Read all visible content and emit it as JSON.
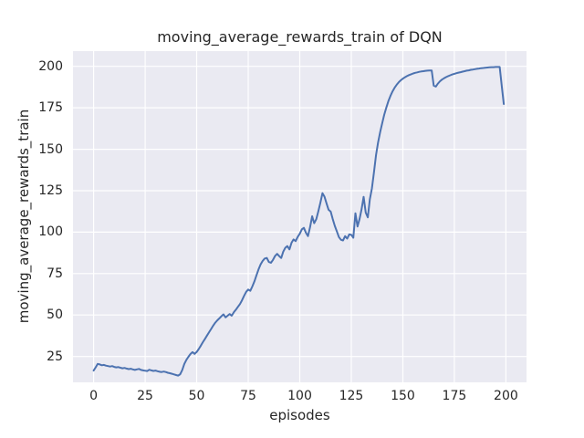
{
  "chart_data": {
    "type": "line",
    "title": "moving_average_rewards_train of DQN",
    "xlabel": "episodes",
    "ylabel": "moving_average_rewards_train",
    "xlim": [
      -10,
      210
    ],
    "ylim": [
      9.4,
      209.2
    ],
    "xticks": [
      0,
      25,
      50,
      75,
      100,
      125,
      150,
      175,
      200
    ],
    "yticks": [
      25,
      50,
      75,
      100,
      125,
      150,
      175,
      200
    ],
    "grid": true,
    "legend": "none",
    "colors": {
      "line": "#4c72b0",
      "plot_bg": "#eaeaf2",
      "grid": "#ffffff",
      "text": "#262626",
      "figure_bg": "#ffffff"
    },
    "series": [
      {
        "name": "moving_average_rewards_train",
        "x_start": 0,
        "x_step": 1,
        "y": [
          16.5,
          18.5,
          20.5,
          20.2,
          19.7,
          19.9,
          19.5,
          19.2,
          18.9,
          19.2,
          18.7,
          18.4,
          18.6,
          18.2,
          17.9,
          18.1,
          17.7,
          17.4,
          17.6,
          17.2,
          16.9,
          17.2,
          17.5,
          16.9,
          16.6,
          16.4,
          16.2,
          17.0,
          16.6,
          16.3,
          16.5,
          16.1,
          15.8,
          15.6,
          15.9,
          15.6,
          15.2,
          14.9,
          14.6,
          14.2,
          13.8,
          13.5,
          14.3,
          16.8,
          20.5,
          23.0,
          24.8,
          26.5,
          27.6,
          26.6,
          27.7,
          29.5,
          31.5,
          33.6,
          35.6,
          37.6,
          39.6,
          41.6,
          43.6,
          45.4,
          46.8,
          48.0,
          49.3,
          50.4,
          48.6,
          49.6,
          50.6,
          49.6,
          51.6,
          53.2,
          54.9,
          56.6,
          58.9,
          61.6,
          64.0,
          65.4,
          64.6,
          67.2,
          70.3,
          74.0,
          77.5,
          80.5,
          82.6,
          84.1,
          84.4,
          82.0,
          81.5,
          83.2,
          85.6,
          86.9,
          85.6,
          84.4,
          88.2,
          90.6,
          91.6,
          89.6,
          93.6,
          95.6,
          94.6,
          97.1,
          99.0,
          101.7,
          102.6,
          99.6,
          97.6,
          103.0,
          109.6,
          105.4,
          107.8,
          112.5,
          117.8,
          123.5,
          121.4,
          117.2,
          113.5,
          112.4,
          108.0,
          103.8,
          100.4,
          97.0,
          95.4,
          95.0,
          97.6,
          96.1,
          98.6,
          98.4,
          96.6,
          111.4,
          103.4,
          107.8,
          114.0,
          121.3,
          111.8,
          108.9,
          119.8,
          126.5,
          136.0,
          146.5,
          154.0,
          160.3,
          165.8,
          170.9,
          175.2,
          179.0,
          182.2,
          184.9,
          187.1,
          188.9,
          190.4,
          191.6,
          192.6,
          193.4,
          194.1,
          194.7,
          195.2,
          195.7,
          196.1,
          196.4,
          196.7,
          196.9,
          197.1,
          197.3,
          197.4,
          197.5,
          197.5,
          188.4,
          187.8,
          189.6,
          191.0,
          192.0,
          192.8,
          193.5,
          194.1,
          194.6,
          195.1,
          195.5,
          195.9,
          196.2,
          196.5,
          196.8,
          197.1,
          197.4,
          197.6,
          197.9,
          198.1,
          198.3,
          198.5,
          198.7,
          198.9,
          199.0,
          199.2,
          199.3,
          199.4,
          199.5,
          199.5,
          199.6,
          199.6,
          199.6,
          188.0,
          177.3
        ]
      }
    ]
  }
}
